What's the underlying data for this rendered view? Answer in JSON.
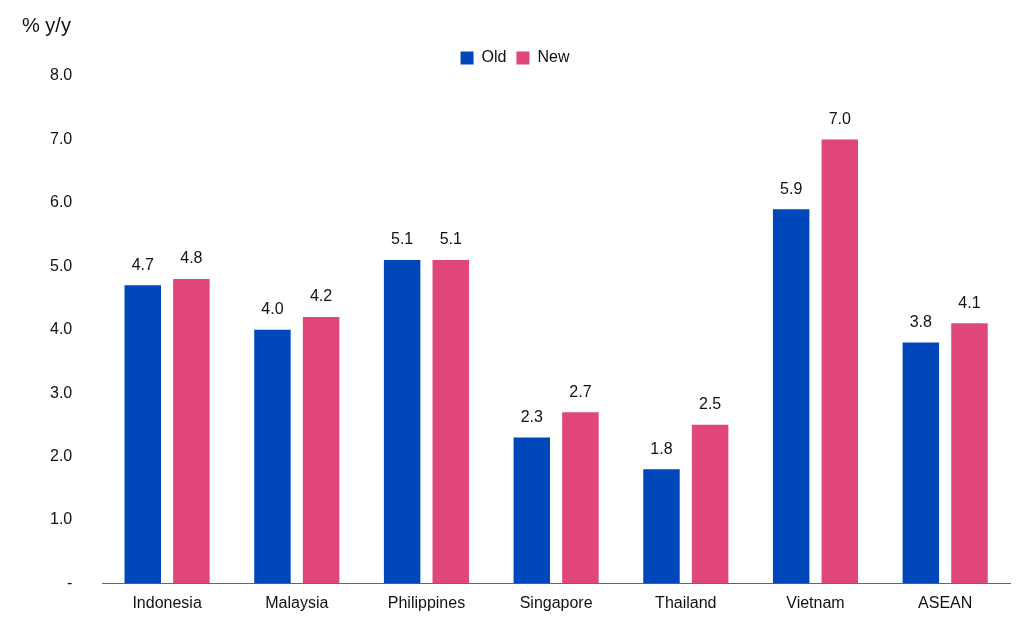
{
  "chart_data": {
    "type": "bar",
    "ylabel": "% y/y",
    "categories": [
      "Indonesia",
      "Malaysia",
      "Philippines",
      "Singapore",
      "Thailand",
      "Vietnam",
      "ASEAN"
    ],
    "series": [
      {
        "name": "Old",
        "color": "#0047bb",
        "values": [
          4.7,
          4.0,
          5.1,
          2.3,
          1.8,
          5.9,
          3.8
        ],
        "value_labels": [
          "4.7",
          "4.0",
          "5.1",
          "2.3",
          "1.8",
          "5.9",
          "3.8"
        ]
      },
      {
        "name": "New",
        "color": "#e0457b",
        "values": [
          4.8,
          4.2,
          5.1,
          2.7,
          2.5,
          7.0,
          4.1
        ],
        "value_labels": [
          "4.8",
          "4.2",
          "5.1",
          "2.7",
          "2.5",
          "7.0",
          "4.1"
        ]
      }
    ],
    "ylim": [
      0,
      8
    ],
    "yticks": [
      {
        "value": 0,
        "label": "-"
      },
      {
        "value": 1,
        "label": "1.0"
      },
      {
        "value": 2,
        "label": "2.0"
      },
      {
        "value": 3,
        "label": "3.0"
      },
      {
        "value": 4,
        "label": "4.0"
      },
      {
        "value": 5,
        "label": "5.0"
      },
      {
        "value": 6,
        "label": "6.0"
      },
      {
        "value": 7,
        "label": "7.0"
      },
      {
        "value": 8,
        "label": "8.0"
      }
    ],
    "legend": "top",
    "grid": false
  }
}
